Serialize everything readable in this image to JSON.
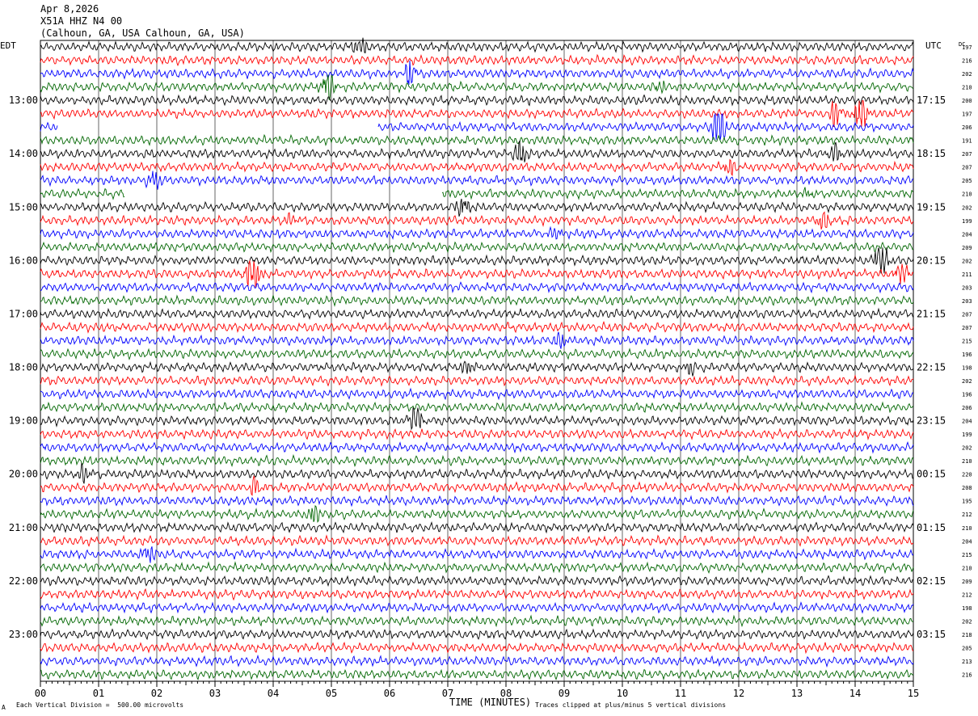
{
  "header": {
    "date": "Apr 8,2026",
    "station": "X51A HHZ N4 00",
    "location": "(Calhoun, GA, USA Calhoun, GA, USA)"
  },
  "left_axis_title": "EDT",
  "right_axis_title": "UTC",
  "dc_title": "DC",
  "footer": {
    "scale_note": "Each Vertical Division =  500.00 microvolts",
    "clip_note": "Traces clipped at plus/minus 5 vertical divisions",
    "corner_mark": "A"
  },
  "colors": {
    "trace_cycle": [
      "#000000",
      "#ff0000",
      "#0000ff",
      "#006600"
    ],
    "grid": "#000000"
  },
  "chart_data": {
    "type": "line",
    "title": "",
    "xlabel": "TIME (MINUTES)",
    "x_ticks": [
      "00",
      "01",
      "02",
      "03",
      "04",
      "05",
      "06",
      "07",
      "08",
      "09",
      "10",
      "11",
      "12",
      "13",
      "14",
      "15"
    ],
    "xlim": [
      0,
      15
    ],
    "rows": 48,
    "edt_labels": [
      {
        "row": 4,
        "label": "13:00"
      },
      {
        "row": 8,
        "label": "14:00"
      },
      {
        "row": 12,
        "label": "15:00"
      },
      {
        "row": 16,
        "label": "16:00"
      },
      {
        "row": 20,
        "label": "17:00"
      },
      {
        "row": 24,
        "label": "18:00"
      },
      {
        "row": 28,
        "label": "19:00"
      },
      {
        "row": 32,
        "label": "20:00"
      },
      {
        "row": 36,
        "label": "21:00"
      },
      {
        "row": 40,
        "label": "22:00"
      },
      {
        "row": 44,
        "label": "23:00"
      }
    ],
    "utc_labels": [
      {
        "row": 4,
        "label": "17:15"
      },
      {
        "row": 8,
        "label": "18:15"
      },
      {
        "row": 12,
        "label": "19:15"
      },
      {
        "row": 16,
        "label": "20:15"
      },
      {
        "row": 20,
        "label": "21:15"
      },
      {
        "row": 24,
        "label": "22:15"
      },
      {
        "row": 28,
        "label": "23:15"
      },
      {
        "row": 32,
        "label": "00:15"
      },
      {
        "row": 36,
        "label": "01:15"
      },
      {
        "row": 40,
        "label": "02:15"
      },
      {
        "row": 44,
        "label": "03:15"
      }
    ],
    "dc_offsets": [
      197,
      216,
      202,
      210,
      200,
      197,
      206,
      191,
      207,
      207,
      205,
      210,
      202,
      199,
      204,
      209,
      202,
      211,
      203,
      203,
      207,
      207,
      215,
      196,
      198,
      202,
      196,
      206,
      204,
      199,
      202,
      210,
      220,
      208,
      195,
      212,
      210,
      204,
      215,
      210,
      209,
      212,
      198,
      202,
      218,
      205,
      213,
      216
    ],
    "events": [
      {
        "row": 0,
        "minute": 5.5,
        "amp": 2.0
      },
      {
        "row": 2,
        "minute": 6.35,
        "amp": 2.5
      },
      {
        "row": 3,
        "minute": 4.95,
        "amp": 3.0
      },
      {
        "row": 3,
        "minute": 10.65,
        "amp": 1.2
      },
      {
        "row": 5,
        "minute": 13.65,
        "amp": 3.0
      },
      {
        "row": 5,
        "minute": 14.1,
        "amp": 4.5
      },
      {
        "row": 6,
        "minute": 11.65,
        "amp": 5.0
      },
      {
        "row": 8,
        "minute": 8.25,
        "amp": 2.5
      },
      {
        "row": 8,
        "minute": 13.65,
        "amp": 1.8
      },
      {
        "row": 9,
        "minute": 11.85,
        "amp": 1.5
      },
      {
        "row": 10,
        "minute": 1.95,
        "amp": 2.0
      },
      {
        "row": 11,
        "minute": 13.2,
        "amp": 1.0
      },
      {
        "row": 12,
        "minute": 7.25,
        "amp": 2.0
      },
      {
        "row": 13,
        "minute": 13.45,
        "amp": 2.0
      },
      {
        "row": 13,
        "minute": 4.3,
        "amp": 1.0
      },
      {
        "row": 14,
        "minute": 8.85,
        "amp": 1.5
      },
      {
        "row": 16,
        "minute": 14.45,
        "amp": 4.5
      },
      {
        "row": 17,
        "minute": 3.65,
        "amp": 5.0
      },
      {
        "row": 17,
        "minute": 14.8,
        "amp": 2.0
      },
      {
        "row": 22,
        "minute": 8.95,
        "amp": 1.5
      },
      {
        "row": 24,
        "minute": 7.35,
        "amp": 1.5
      },
      {
        "row": 24,
        "minute": 11.15,
        "amp": 1.5
      },
      {
        "row": 28,
        "minute": 6.45,
        "amp": 3.5
      },
      {
        "row": 32,
        "minute": 0.75,
        "amp": 1.8
      },
      {
        "row": 33,
        "minute": 3.7,
        "amp": 2.0
      },
      {
        "row": 35,
        "minute": 4.7,
        "amp": 1.8
      },
      {
        "row": 38,
        "minute": 1.85,
        "amp": 1.8
      }
    ],
    "gaps": [
      {
        "row": 6,
        "from_minute": 0.3,
        "to_minute": 5.8
      },
      {
        "row": 11,
        "from_minute": 1.45,
        "to_minute": 6.9
      }
    ]
  }
}
